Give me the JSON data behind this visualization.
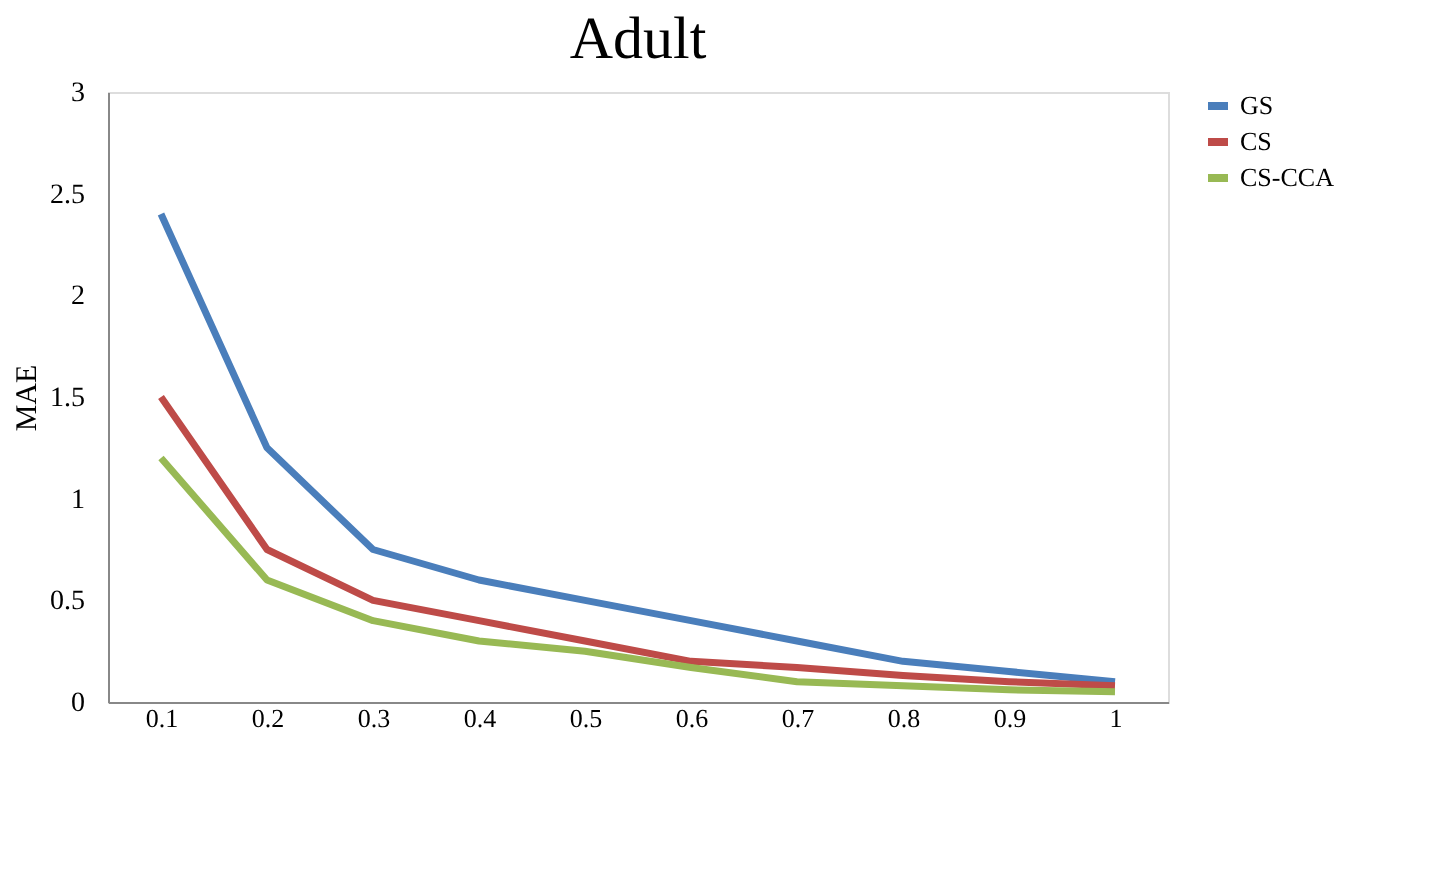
{
  "chart_data": {
    "type": "line",
    "title": "Adult",
    "ylabel": "MAE",
    "categories": [
      "0.1",
      "0.2",
      "0.3",
      "0.4",
      "0.5",
      "0.6",
      "0.7",
      "0.8",
      "0.9",
      "1"
    ],
    "series": [
      {
        "name": "GS",
        "color": "#4a7ebb",
        "values": [
          2.4,
          1.25,
          0.75,
          0.6,
          0.5,
          0.4,
          0.3,
          0.2,
          0.15,
          0.1
        ]
      },
      {
        "name": "CS",
        "color": "#be4b48",
        "values": [
          1.5,
          0.75,
          0.5,
          0.4,
          0.3,
          0.2,
          0.17,
          0.13,
          0.1,
          0.08
        ]
      },
      {
        "name": "CS-CCA",
        "color": "#98b954",
        "values": [
          1.2,
          0.6,
          0.4,
          0.3,
          0.25,
          0.17,
          0.1,
          0.08,
          0.06,
          0.05
        ]
      }
    ],
    "ylim": [
      0,
      3
    ],
    "yticks": [
      0,
      0.5,
      1,
      1.5,
      2,
      2.5,
      3
    ],
    "grid": false,
    "legend": "right",
    "marker": "none",
    "line_style": "solid"
  }
}
